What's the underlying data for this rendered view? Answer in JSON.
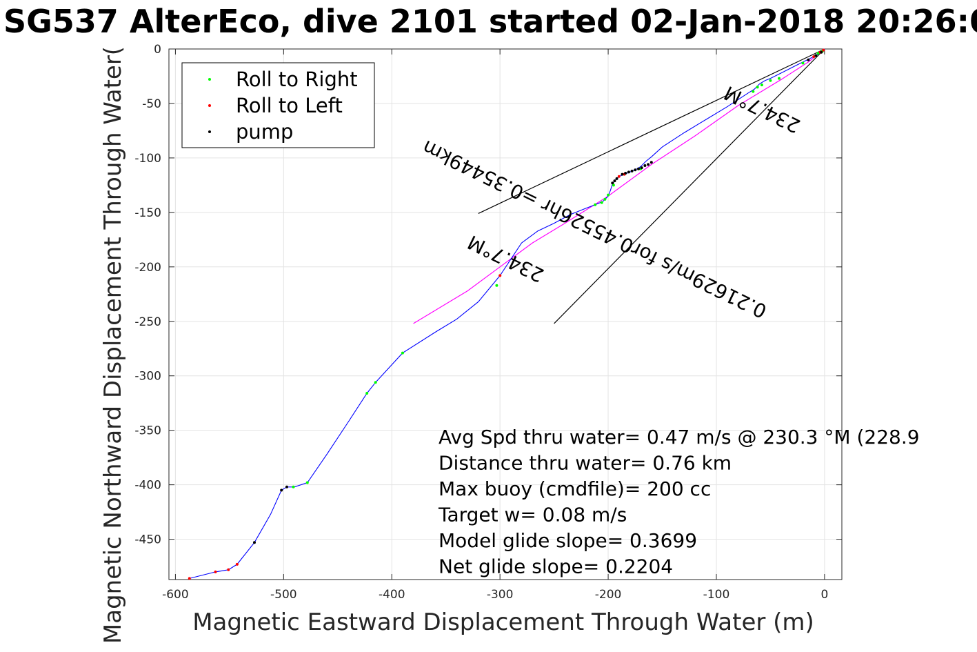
{
  "chart_data": {
    "type": "line",
    "title": "SG537 AlterEco, dive 2101 started 02-Jan-2018 20:26:0",
    "xlabel": "Magnetic Eastward Displacement Through Water (m)",
    "ylabel": "Magnetic Northward Displacement Through Water(",
    "xlim": [
      -606,
      16
    ],
    "ylim": [
      -487,
      0
    ],
    "xticks": [
      -600,
      -500,
      -400,
      -300,
      -200,
      -100,
      0
    ],
    "yticks": [
      0,
      -50,
      -100,
      -150,
      -200,
      -250,
      -300,
      -350,
      -400,
      -450
    ],
    "grid": true,
    "legend_position": "top-left",
    "legend": [
      {
        "label": "Roll to Right",
        "color": "#00ff00"
      },
      {
        "label": "Roll to Left",
        "color": "#ff0000"
      },
      {
        "label": "pump",
        "color": "#000000"
      }
    ],
    "track": {
      "color": "#0000ff",
      "points": [
        [
          0,
          0
        ],
        [
          -3,
          -3
        ],
        [
          -8,
          -6
        ],
        [
          -12,
          -8
        ],
        [
          -20,
          -12
        ],
        [
          -30,
          -17
        ],
        [
          -40,
          -22
        ],
        [
          -50,
          -27
        ],
        [
          -55,
          -29
        ],
        [
          -60,
          -32
        ],
        [
          -65,
          -37
        ],
        [
          -70,
          -40
        ],
        [
          -90,
          -53
        ],
        [
          -110,
          -65
        ],
        [
          -130,
          -77
        ],
        [
          -150,
          -90
        ],
        [
          -160,
          -99
        ],
        [
          -165,
          -103
        ],
        [
          -170,
          -108
        ],
        [
          -175,
          -111
        ],
        [
          -180,
          -113
        ],
        [
          -185,
          -115
        ],
        [
          -190,
          -117
        ],
        [
          -194,
          -121
        ],
        [
          -196,
          -124
        ],
        [
          -198,
          -130
        ],
        [
          -200,
          -135
        ],
        [
          -205,
          -140
        ],
        [
          -212,
          -143
        ],
        [
          -220,
          -146
        ],
        [
          -235,
          -152
        ],
        [
          -250,
          -160
        ],
        [
          -265,
          -167
        ],
        [
          -280,
          -178
        ],
        [
          -300,
          -208
        ],
        [
          -320,
          -232
        ],
        [
          -340,
          -248
        ],
        [
          -360,
          -260
        ],
        [
          -390,
          -279
        ],
        [
          -415,
          -306
        ],
        [
          -423,
          -316
        ],
        [
          -440,
          -342
        ],
        [
          -460,
          -372
        ],
        [
          -478,
          -398
        ],
        [
          -490,
          -402
        ],
        [
          -497,
          -402
        ],
        [
          -502,
          -405
        ],
        [
          -512,
          -427
        ],
        [
          -527,
          -453
        ],
        [
          -543,
          -473
        ],
        [
          -551,
          -478
        ],
        [
          -563,
          -480
        ],
        [
          -587,
          -486
        ]
      ]
    },
    "pitch_line": {
      "color": "#ff00ff",
      "points": [
        [
          0,
          0
        ],
        [
          -15,
          -12
        ],
        [
          -40,
          -28
        ],
        [
          -80,
          -52
        ],
        [
          -120,
          -80
        ],
        [
          -160,
          -106
        ],
        [
          -200,
          -135
        ],
        [
          -240,
          -160
        ],
        [
          -270,
          -178
        ],
        [
          -300,
          -200
        ],
        [
          -330,
          -222
        ],
        [
          -360,
          -240
        ],
        [
          -380,
          -252
        ]
      ]
    },
    "heading_lines": [
      {
        "points": [
          [
            0,
            0
          ],
          [
            -320,
            -151
          ]
        ],
        "color": "#000000"
      },
      {
        "points": [
          [
            0,
            0
          ],
          [
            -250,
            -252
          ]
        ],
        "color": "#000000"
      }
    ],
    "markers": {
      "roll_right": [
        [
          -2,
          -2
        ],
        [
          -6,
          -4
        ],
        [
          -20,
          -13
        ],
        [
          -42,
          -27
        ],
        [
          -50,
          -29
        ],
        [
          -58,
          -33
        ],
        [
          -62,
          -35
        ],
        [
          -66,
          -39
        ],
        [
          -170,
          -110
        ],
        [
          -195,
          -125
        ],
        [
          -200,
          -134
        ],
        [
          -203,
          -138
        ],
        [
          -206,
          -141
        ],
        [
          -212,
          -143
        ],
        [
          -303,
          -217
        ],
        [
          -390,
          -279
        ],
        [
          -415,
          -306
        ],
        [
          -423,
          -316
        ],
        [
          -478,
          -398
        ],
        [
          -491,
          -402
        ]
      ],
      "roll_left": [
        [
          -1,
          -1
        ],
        [
          -4,
          -3
        ],
        [
          -10,
          -7
        ],
        [
          -185,
          -115
        ],
        [
          -190,
          -117
        ],
        [
          -300,
          -208
        ],
        [
          -543,
          -473
        ],
        [
          -551,
          -478
        ],
        [
          -563,
          -480
        ],
        [
          -587,
          -486
        ]
      ],
      "pump": [
        [
          -3,
          -3
        ],
        [
          -8,
          -6
        ],
        [
          -15,
          -10
        ],
        [
          -160,
          -104
        ],
        [
          -163,
          -106
        ],
        [
          -166,
          -107
        ],
        [
          -169,
          -109
        ],
        [
          -172,
          -110
        ],
        [
          -175,
          -111
        ],
        [
          -178,
          -112
        ],
        [
          -181,
          -113
        ],
        [
          -184,
          -114
        ],
        [
          -187,
          -115
        ],
        [
          -192,
          -119
        ],
        [
          -194,
          -121
        ],
        [
          -196,
          -123
        ],
        [
          -497,
          -402
        ],
        [
          -502,
          -405
        ],
        [
          -527,
          -453
        ]
      ]
    },
    "annotations": [
      {
        "text": "234.7°M",
        "x": -55,
        "y": -50,
        "angle": 206
      },
      {
        "text": "0.21629m/s for0.45526hr =0.35449km",
        "x": -210,
        "y": -160,
        "angle": 206
      },
      {
        "text": "234.7°M",
        "x": -292,
        "y": -187,
        "angle": 206
      }
    ],
    "stats": [
      "Avg Spd thru water=  0.47 m/s @ 230.3 °M (228.9",
      "Distance thru water=  0.76 km",
      "Max buoy (cmdfile)= 200 cc",
      "Target w= 0.08 m/s",
      "Model glide slope= 0.3699",
      "Net glide slope= 0.2204"
    ]
  }
}
